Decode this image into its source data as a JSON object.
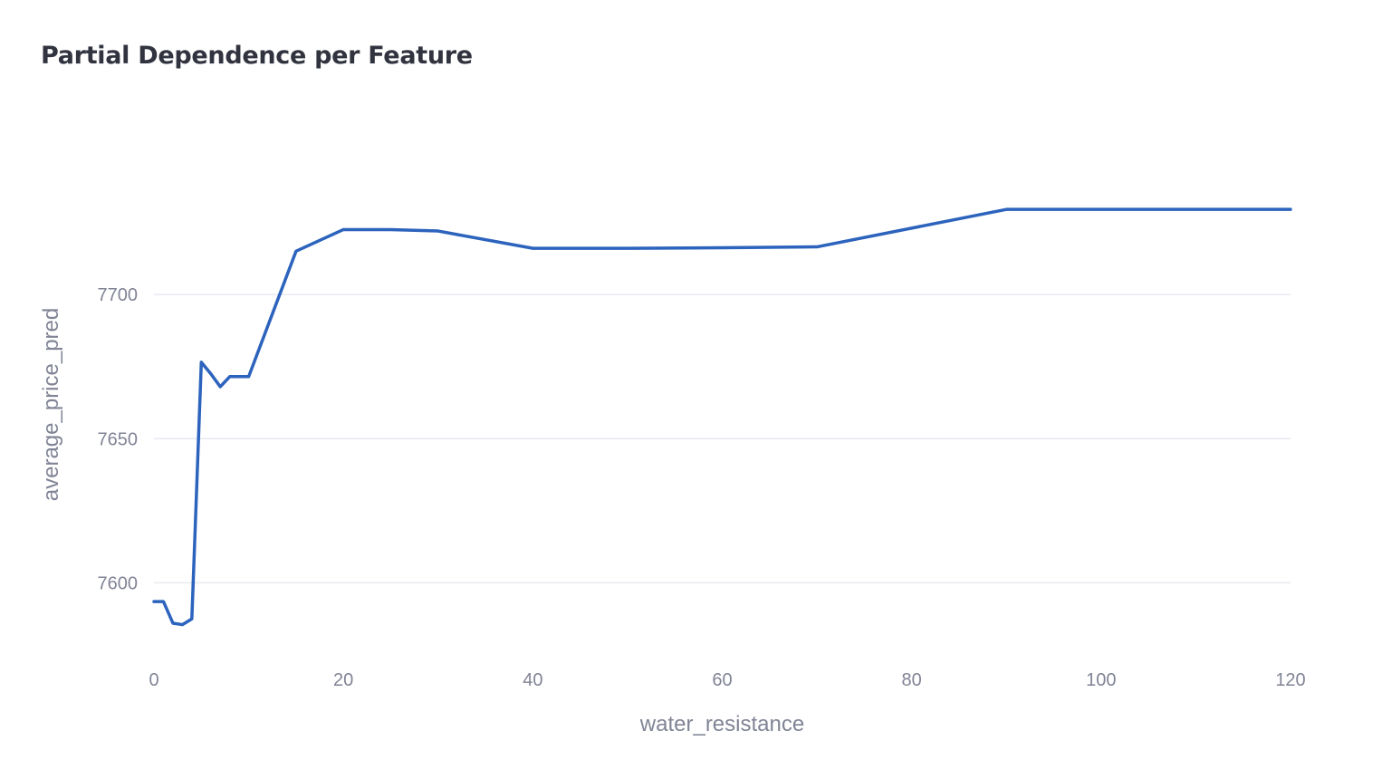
{
  "colors": {
    "line": "#2c63bd",
    "grid": "#e6e9ef",
    "text": "#808495",
    "title": "#31333f"
  },
  "chart_data": {
    "type": "line",
    "title": "Partial Dependence per Feature",
    "xlabel": "water_resistance",
    "ylabel": "average_price_pred",
    "xlim": [
      0,
      120
    ],
    "ylim": [
      7575,
      7755
    ],
    "x_ticks": [
      0,
      20,
      40,
      60,
      80,
      100,
      120
    ],
    "y_ticks": [
      7600,
      7650,
      7700
    ],
    "grid": "horizontal",
    "legend": "none",
    "series": [
      {
        "x": [
          0,
          1,
          2,
          3,
          4,
          5,
          6,
          7,
          8,
          9,
          10,
          15,
          20,
          25,
          30,
          40,
          50,
          60,
          70,
          80,
          90,
          100,
          110,
          120
        ],
        "y": [
          7593.5,
          7593.5,
          7586,
          7585.5,
          7587.5,
          7676.5,
          7672.5,
          7668,
          7671.5,
          7671.5,
          7671.5,
          7715,
          7722.5,
          7722.5,
          7722,
          7716,
          7716,
          7716.2,
          7716.5,
          7723,
          7729.5,
          7729.5,
          7729.5,
          7729.5
        ]
      }
    ]
  }
}
